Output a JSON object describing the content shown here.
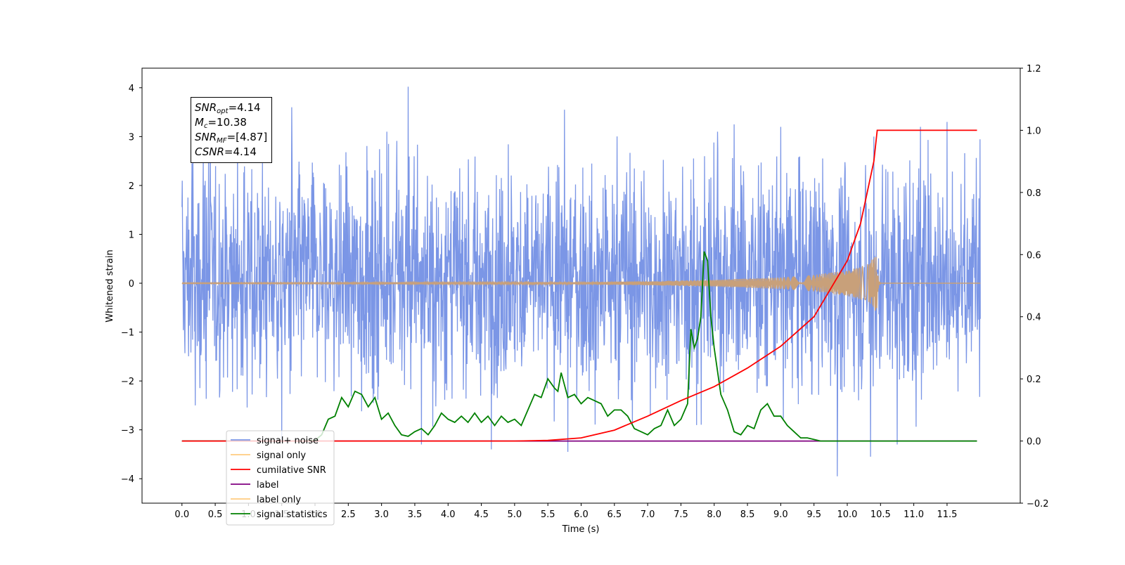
{
  "chart_data": {
    "type": "line",
    "x_label": "Time (s)",
    "y_label": "Whitened strain",
    "x_ticks": [
      "0.0",
      "0.5",
      "1.0",
      "1.5",
      "2.0",
      "2.5",
      "3.0",
      "3.5",
      "4.0",
      "4.5",
      "5.0",
      "5.5",
      "6.0",
      "6.5",
      "7.0",
      "7.5",
      "8.0",
      "8.5",
      "9.0",
      "9.5",
      "10.0",
      "10.5",
      "11.0",
      "11.5"
    ],
    "x_range": [
      -0.6,
      12.6
    ],
    "y_left_ticks": [
      "−4",
      "−3",
      "−2",
      "−1",
      "0",
      "1",
      "2",
      "3",
      "4"
    ],
    "y_left_range": [
      -4.5,
      4.4
    ],
    "y_right_ticks": [
      "−0.2",
      "0.0",
      "0.2",
      "0.4",
      "0.6",
      "0.8",
      "1.0",
      "1.2"
    ],
    "y_right_range": [
      -0.2,
      1.2
    ],
    "grid": false,
    "legend_position": "lower-left",
    "legend": [
      {
        "name": "signal+ noise",
        "color": "#7b96e6"
      },
      {
        "name": "signal only",
        "color": "#ffcc80"
      },
      {
        "name": "cumilative SNR",
        "color": "#ff0000"
      },
      {
        "name": "label",
        "color": "#800080"
      },
      {
        "name": "label only",
        "color": "#ffcc80"
      },
      {
        "name": "signal statistics",
        "color": "#008000"
      }
    ],
    "annotation": {
      "snr_opt": {
        "label": "SNR",
        "sub": "opt",
        "value": "=4.14"
      },
      "mc": {
        "label": "M",
        "sub": "c",
        "value": "=10.38"
      },
      "snr_mf": {
        "label": "SNR",
        "sub": "MF",
        "value": "=[4.87]"
      },
      "csnr": {
        "label": "CSNR",
        "value": "=4.14"
      }
    },
    "series": [
      {
        "name": "signal+ noise",
        "axis": "left",
        "color": "#7b96e6",
        "description": "dense whitened noise between about -2.4 and 2.6, duration 0-12 s",
        "x_start": 0.0,
        "x_end": 12.0,
        "envelope_low": -2.4,
        "envelope_high": 2.6,
        "spike_peaks": [
          [
            0.15,
            2.45
          ],
          [
            0.4,
            2.5
          ],
          [
            1.65,
            3.6
          ],
          [
            3.4,
            4.02
          ],
          [
            5.75,
            3.55
          ],
          [
            8.05,
            3.1
          ],
          [
            8.3,
            3.25
          ],
          [
            9.0,
            3.2
          ],
          [
            9.85,
            3.5
          ],
          [
            10.4,
            3.0
          ],
          [
            11.1,
            3.2
          ],
          [
            11.5,
            3.3
          ]
        ],
        "spike_troughs": [
          [
            0.2,
            -2.5
          ],
          [
            1.5,
            -3.2
          ],
          [
            3.6,
            -3.3
          ],
          [
            4.65,
            -3.4
          ],
          [
            5.8,
            -3.45
          ],
          [
            9.85,
            -3.95
          ],
          [
            10.35,
            -3.55
          ],
          [
            10.75,
            -3.3
          ]
        ]
      },
      {
        "name": "signal only",
        "axis": "left",
        "color": "#c8a07a",
        "description": "chirp near zero growing to amplitude ~0.6 at 10.45 s then ringdown",
        "x": [
          0.0,
          6.0,
          7.0,
          8.0,
          9.0,
          9.5,
          10.0,
          10.3,
          10.45,
          10.5,
          12.0
        ],
        "amplitude": [
          0.01,
          0.02,
          0.04,
          0.07,
          0.12,
          0.17,
          0.26,
          0.38,
          0.6,
          0.0,
          0.0
        ]
      },
      {
        "name": "cumilative SNR",
        "axis": "right",
        "color": "#ff0000",
        "x": [
          0.0,
          5.0,
          5.5,
          6.0,
          6.5,
          7.0,
          7.5,
          8.0,
          8.5,
          9.0,
          9.5,
          10.0,
          10.2,
          10.4,
          10.45,
          10.5,
          11.0,
          11.5,
          11.95
        ],
        "y": [
          0.0,
          0.0,
          0.002,
          0.01,
          0.035,
          0.08,
          0.13,
          0.175,
          0.235,
          0.305,
          0.4,
          0.58,
          0.7,
          0.9,
          1.0,
          1.0,
          1.0,
          1.0,
          1.0
        ]
      },
      {
        "name": "label",
        "axis": "right",
        "color": "#800080",
        "x": [
          0.0,
          11.95
        ],
        "y": [
          0.0,
          0.0
        ]
      },
      {
        "name": "signal statistics",
        "axis": "right",
        "color": "#008000",
        "x": [
          0.0,
          0.5,
          1.0,
          1.5,
          1.8,
          2.0,
          2.1,
          2.2,
          2.3,
          2.4,
          2.5,
          2.6,
          2.7,
          2.8,
          2.9,
          3.0,
          3.1,
          3.2,
          3.3,
          3.4,
          3.5,
          3.6,
          3.7,
          3.8,
          3.9,
          4.0,
          4.1,
          4.2,
          4.3,
          4.4,
          4.5,
          4.6,
          4.7,
          4.8,
          4.9,
          5.0,
          5.1,
          5.2,
          5.3,
          5.4,
          5.5,
          5.6,
          5.65,
          5.7,
          5.8,
          5.9,
          6.0,
          6.1,
          6.2,
          6.3,
          6.4,
          6.5,
          6.6,
          6.7,
          6.8,
          6.9,
          7.0,
          7.1,
          7.2,
          7.3,
          7.4,
          7.5,
          7.6,
          7.65,
          7.7,
          7.75,
          7.8,
          7.85,
          7.9,
          7.95,
          8.0,
          8.1,
          8.2,
          8.3,
          8.4,
          8.5,
          8.6,
          8.7,
          8.8,
          8.9,
          9.0,
          9.1,
          9.2,
          9.3,
          9.4,
          9.5,
          9.6,
          9.8,
          10.0,
          11.0,
          11.95
        ],
        "y": [
          0.0,
          0.0,
          0.0,
          0.0,
          0.0,
          0.002,
          0.02,
          0.07,
          0.08,
          0.14,
          0.11,
          0.16,
          0.15,
          0.11,
          0.14,
          0.07,
          0.09,
          0.05,
          0.02,
          0.015,
          0.03,
          0.04,
          0.02,
          0.05,
          0.09,
          0.07,
          0.06,
          0.08,
          0.06,
          0.09,
          0.06,
          0.08,
          0.05,
          0.08,
          0.06,
          0.07,
          0.05,
          0.1,
          0.15,
          0.14,
          0.2,
          0.17,
          0.16,
          0.22,
          0.14,
          0.15,
          0.12,
          0.14,
          0.13,
          0.12,
          0.08,
          0.1,
          0.1,
          0.08,
          0.04,
          0.03,
          0.02,
          0.04,
          0.05,
          0.1,
          0.05,
          0.07,
          0.12,
          0.36,
          0.3,
          0.33,
          0.4,
          0.61,
          0.58,
          0.4,
          0.3,
          0.15,
          0.1,
          0.03,
          0.02,
          0.05,
          0.04,
          0.1,
          0.12,
          0.08,
          0.08,
          0.05,
          0.03,
          0.01,
          0.01,
          0.005,
          0.0,
          0.0,
          0.0,
          0.0,
          0.0
        ]
      }
    ]
  }
}
